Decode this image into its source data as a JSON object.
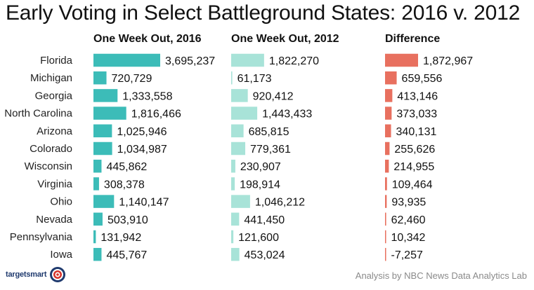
{
  "chart_data": {
    "type": "bar",
    "title": "Early Voting in Select Battleground States: 2016 v. 2012",
    "categories": [
      "Florida",
      "Michigan",
      "Georgia",
      "North Carolina",
      "Arizona",
      "Colorado",
      "Wisconsin",
      "Virginia",
      "Ohio",
      "Nevada",
      "Pennsylvania",
      "Iowa"
    ],
    "series": [
      {
        "name": "One Week Out, 2016",
        "color": "#3cbcb8",
        "values": [
          3695237,
          720729,
          1333558,
          1816466,
          1025946,
          1034987,
          445862,
          308378,
          1140147,
          503910,
          131942,
          445767
        ],
        "labels": [
          "3,695,237",
          "720,729",
          "1,333,558",
          "1,816,466",
          "1,025,946",
          "1,034,987",
          "445,862",
          "308,378",
          "1,140,147",
          "503,910",
          "131,942",
          "445,767"
        ]
      },
      {
        "name": "One Week Out, 2012",
        "color": "#a8e3d8",
        "values": [
          1822270,
          61173,
          920412,
          1443433,
          685815,
          779361,
          230907,
          198914,
          1046212,
          441450,
          121600,
          453024
        ],
        "labels": [
          "1,822,270",
          "61,173",
          "920,412",
          "1,443,433",
          "685,815",
          "779,361",
          "230,907",
          "198,914",
          "1,046,212",
          "441,450",
          "121,600",
          "453,024"
        ]
      },
      {
        "name": "Difference",
        "color": "#e8705f",
        "values": [
          1872967,
          659556,
          413146,
          373033,
          340131,
          255626,
          214955,
          109464,
          93935,
          62460,
          10342,
          -7257
        ],
        "labels": [
          "1,872,967",
          "659,556",
          "413,146",
          "373,033",
          "340,131",
          "255,626",
          "214,955",
          "109,464",
          "93,935",
          "62,460",
          "10,342",
          "-7,257"
        ]
      }
    ]
  },
  "logo_text": "targetsmart",
  "credit": "Analysis by NBC News Data Analytics Lab"
}
